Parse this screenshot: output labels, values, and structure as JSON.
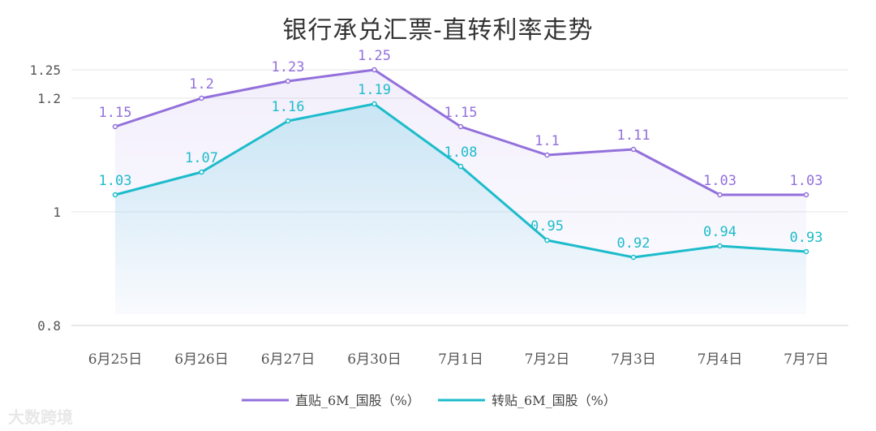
{
  "chart_data": {
    "type": "line",
    "title": "银行承兑汇票-直转利率走势",
    "categories": [
      "6月25日",
      "6月26日",
      "6月27日",
      "6月30日",
      "7月1日",
      "7月2日",
      "7月3日",
      "7月4日",
      "7月7日"
    ],
    "series": [
      {
        "name": "直贴_6M_国股（%）",
        "color": "#9370DB",
        "values": [
          1.15,
          1.2,
          1.23,
          1.25,
          1.15,
          1.1,
          1.11,
          1.03,
          1.03
        ],
        "labels": [
          "1.15",
          "1.2",
          "1.23",
          "1.25",
          "1.15",
          "1.1",
          "1.11",
          "1.03",
          "1.03"
        ]
      },
      {
        "name": "转贴_6M_国股（%）",
        "color": "#1DBCCB",
        "values": [
          1.03,
          1.07,
          1.16,
          1.19,
          1.08,
          0.95,
          0.92,
          0.94,
          0.93
        ],
        "labels": [
          "1.03",
          "1.07",
          "1.16",
          "1.19",
          "1.08",
          "0.95",
          "0.92",
          "0.94",
          "0.93"
        ]
      }
    ],
    "yticks": [
      {
        "value": 0.8,
        "label": "0.8"
      },
      {
        "value": 1.0,
        "label": "1"
      },
      {
        "value": 1.2,
        "label": "1.2"
      },
      {
        "value": 1.25,
        "label": "1.25"
      }
    ],
    "ylim": [
      0.8,
      1.25
    ],
    "xlabel": "",
    "ylabel": "",
    "grid": true,
    "legend_position": "bottom-center"
  },
  "watermark": "大数跨境"
}
